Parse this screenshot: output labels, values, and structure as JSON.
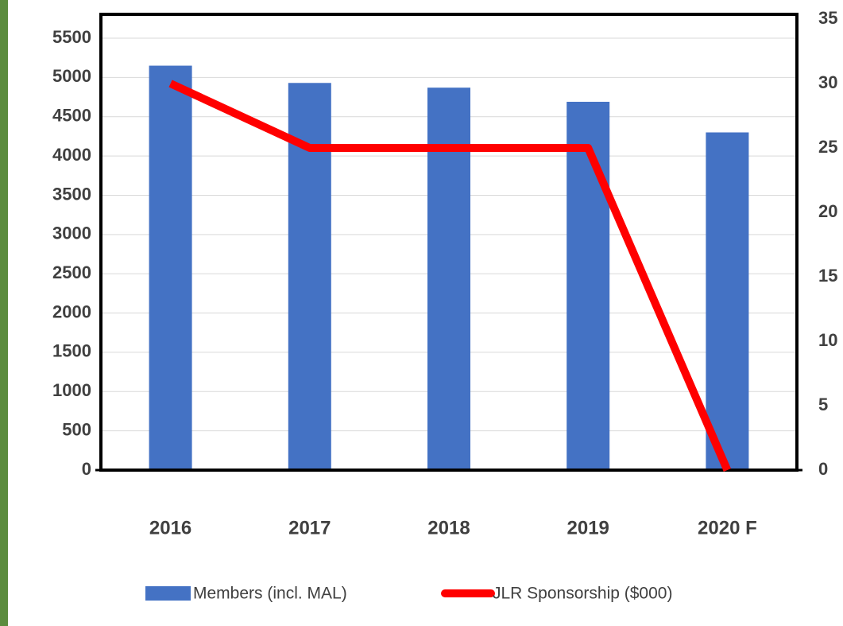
{
  "chart_data": {
    "type": "bar-line",
    "categories": [
      "2016",
      "2017",
      "2018",
      "2019",
      "2020 F"
    ],
    "series": [
      {
        "name": "Members (incl. MAL)",
        "type": "bar",
        "color": "#4472c4",
        "values": [
          5150,
          4930,
          4870,
          4690,
          4300
        ]
      },
      {
        "name": "JLR Sponsorship ($000)",
        "type": "line",
        "axis": "y2",
        "color": "#ff0000",
        "values": [
          30,
          25,
          25,
          25,
          0
        ]
      }
    ],
    "ylim": [
      0,
      5500
    ],
    "yticks": [
      0,
      500,
      1000,
      1500,
      2000,
      2500,
      3000,
      3500,
      4000,
      4500,
      5000,
      5500
    ],
    "y2lim": [
      0,
      35
    ],
    "y2ticks": [
      0,
      5,
      10,
      15,
      20,
      25,
      30,
      35
    ],
    "grid": true,
    "legend": "bottom"
  }
}
